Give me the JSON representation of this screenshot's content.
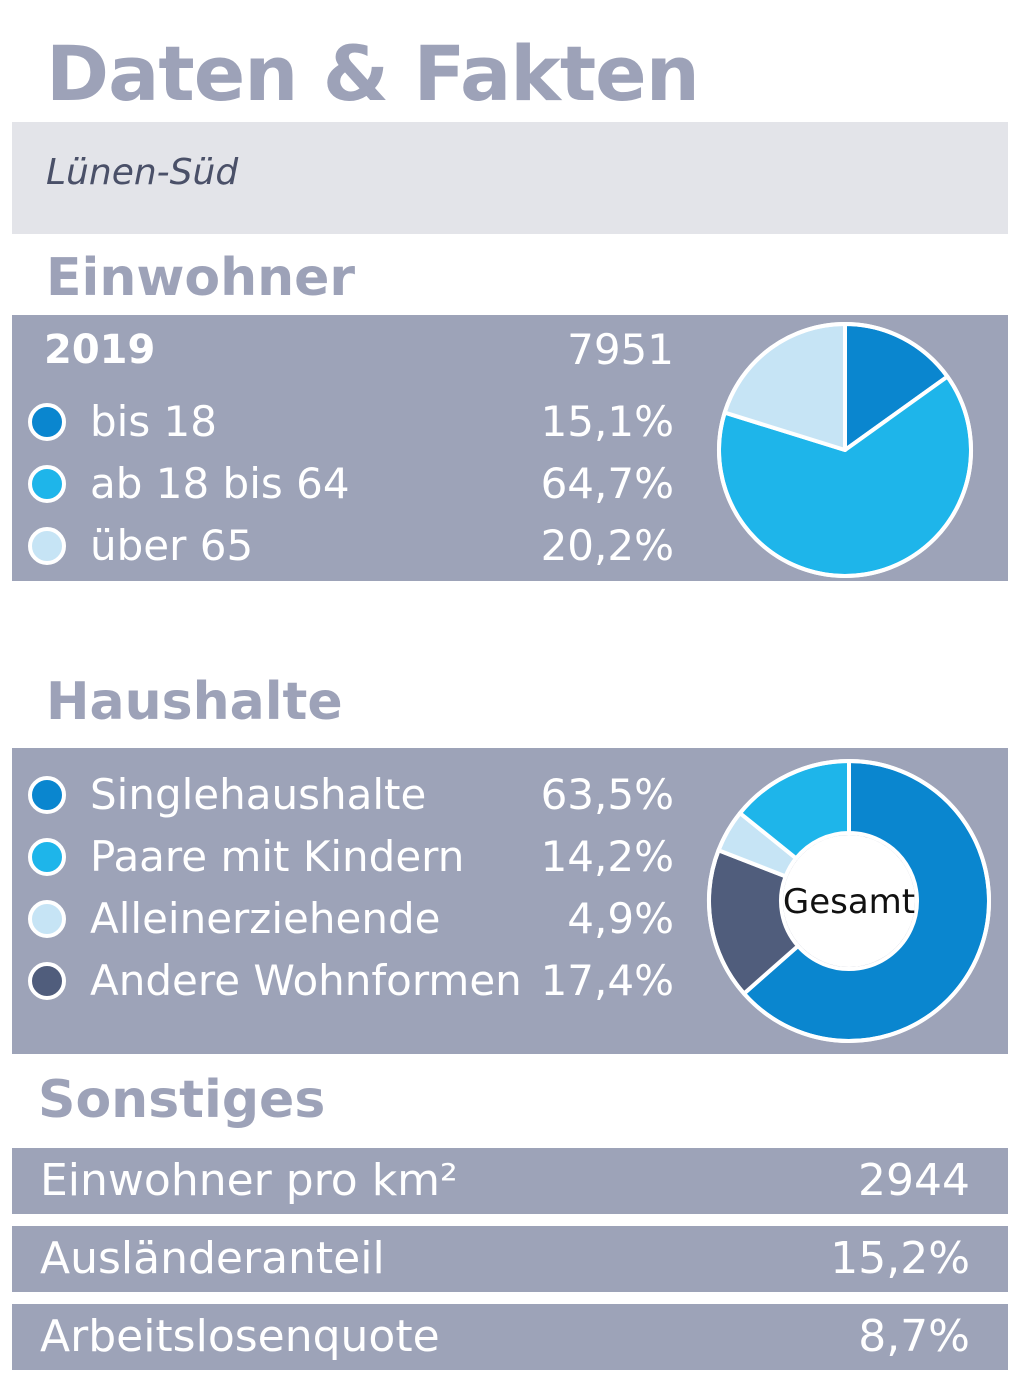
{
  "title": "Daten & Fakten",
  "subtitle": "Lünen-Süd",
  "colors": {
    "panel": "#9da3b8",
    "dark_blue": "#0a86cf",
    "mid_blue": "#1eb5ea",
    "light_blue": "#c6e4f5",
    "slate": "#505d7c",
    "heading": "#9da2b8"
  },
  "einwohner": {
    "heading": "Einwohner",
    "year_label": "2019",
    "total": "7951",
    "legend": [
      {
        "label": "bis 18",
        "value_text": "15,1%",
        "color_key": "dark_blue"
      },
      {
        "label": "ab 18 bis 64",
        "value_text": "64,7%",
        "color_key": "mid_blue"
      },
      {
        "label": "über 65",
        "value_text": "20,2%",
        "color_key": "light_blue"
      }
    ]
  },
  "haushalte": {
    "heading": "Haushalte",
    "center_label": "Gesamt",
    "legend": [
      {
        "label": "Singlehaushalte",
        "value_text": "63,5%",
        "color_key": "dark_blue"
      },
      {
        "label": "Paare mit Kindern",
        "value_text": "14,2%",
        "color_key": "mid_blue"
      },
      {
        "label": "Alleinerziehende",
        "value_text": "4,9%",
        "color_key": "light_blue"
      },
      {
        "label": "Andere Wohnformen",
        "value_text": "17,4%",
        "color_key": "slate"
      }
    ]
  },
  "sonstiges": {
    "heading": "Sonstiges",
    "rows": [
      {
        "label": "Einwohner pro km²",
        "value": "2944"
      },
      {
        "label": "Ausländeranteil",
        "value": "15,2%"
      },
      {
        "label": "Arbeitslosenquote",
        "value": "8,7%"
      }
    ]
  },
  "chart_data": [
    {
      "type": "pie",
      "series": [
        {
          "values": [
            {
              "label": "bis 18",
              "value": 15.1,
              "color": "#0a86cf"
            },
            {
              "label": "ab 18 bis 64",
              "value": 64.7,
              "color": "#1eb5ea"
            },
            {
              "label": "über 65",
              "value": 20.2,
              "color": "#c6e4f5"
            }
          ]
        }
      ]
    },
    {
      "type": "pie",
      "series": [
        {
          "values": [
            {
              "label": "Singlehaushalte",
              "value": 63.5,
              "color": "#0a86cf"
            },
            {
              "label": "Andere Wohnformen",
              "value": 17.4,
              "color": "#505d7c"
            },
            {
              "label": "Alleinerziehende",
              "value": 4.9,
              "color": "#c6e4f5"
            },
            {
              "label": "Paare mit Kindern",
              "value": 14.2,
              "color": "#1eb5ea"
            }
          ]
        }
      ]
    }
  ]
}
